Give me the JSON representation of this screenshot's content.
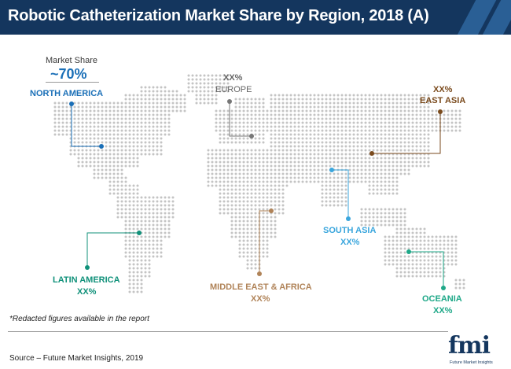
{
  "title": "Robotic Catheterization Market Share by Region, 2018 (A)",
  "market_share": {
    "caption": "Market Share",
    "value": "~70%"
  },
  "regions": [
    {
      "id": "north-america",
      "label": "NORTH AMERICA",
      "value": "",
      "color": "#1a6fb7"
    },
    {
      "id": "europe",
      "label": "EUROPE",
      "value": "XX%",
      "color": "#777777"
    },
    {
      "id": "east-asia",
      "label": "EAST ASIA",
      "value": "XX%",
      "color": "#7a4a1c"
    },
    {
      "id": "south-asia",
      "label": "SOUTH ASIA",
      "value": "XX%",
      "color": "#3aa6dd"
    },
    {
      "id": "latin-america",
      "label": "LATIN AMERICA",
      "value": "XX%",
      "color": "#10917a"
    },
    {
      "id": "middle-east-africa",
      "label": "MIDDLE EAST & AFRICA",
      "value": "XX%",
      "color": "#b08358"
    },
    {
      "id": "oceania",
      "label": "OCEANIA",
      "value": "XX%",
      "color": "#1ea888"
    }
  ],
  "map_dot_color": "#c4c4c4",
  "title_bar_color": "#14365e",
  "note": "*Redacted figures available in the report",
  "source": "Source – Future Market Insights, 2019",
  "logo": {
    "text": "fmi",
    "tagline": "Future Market Insights"
  }
}
